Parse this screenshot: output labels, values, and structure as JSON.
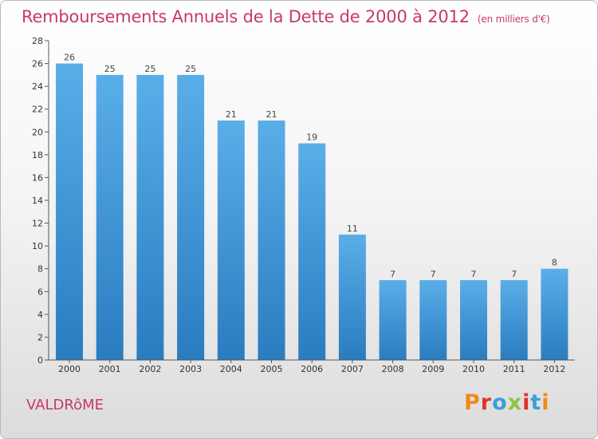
{
  "header": {
    "title": "Remboursements Annuels de la Dette de 2000 à 2012",
    "unit": "(en milliers d'€)"
  },
  "footer": {
    "commune": "VALDRôME",
    "brand": "Proxiti",
    "brand_colors": [
      "#f08a1c",
      "#e0322c",
      "#3a9fd8",
      "#8cc63e",
      "#e0322c",
      "#3a9fd8",
      "#f08a1c"
    ]
  },
  "chart_data": {
    "type": "bar",
    "categories": [
      "2000",
      "2001",
      "2002",
      "2003",
      "2004",
      "2005",
      "2006",
      "2007",
      "2008",
      "2009",
      "2010",
      "2011",
      "2012"
    ],
    "values": [
      26,
      25,
      25,
      25,
      21,
      21,
      19,
      11,
      7,
      7,
      7,
      7,
      8
    ],
    "ylim": [
      0,
      28
    ],
    "yticks": [
      0,
      2,
      4,
      6,
      8,
      10,
      12,
      14,
      16,
      18,
      20,
      22,
      24,
      26,
      28
    ],
    "grid": false,
    "bar_color_top": "#5aaee8",
    "bar_color_bottom": "#2a7cc0"
  }
}
